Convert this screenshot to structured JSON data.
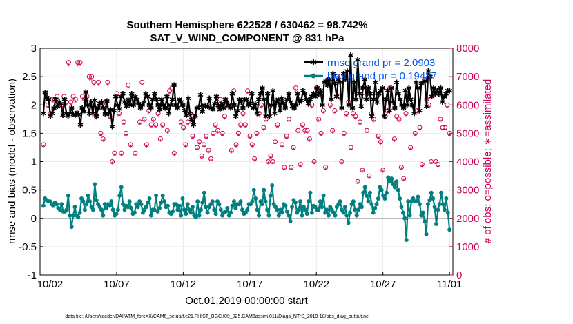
{
  "chart_data": {
    "type": "line",
    "title": "Southern Hemisphere 622528 / 630462 = 98.742%",
    "subtitle": "SAT_V_WIND_COMPONENT @ 831 hPa",
    "xlabel": "Oct.01,2019 00:00:00 start",
    "ylabel_left": "rmse and bias (model - observation)",
    "ylabel_right": "# of obs: o=possible; ∗=assimilated",
    "x_tick_labels": [
      "10/02",
      "10/07",
      "10/12",
      "10/17",
      "10/22",
      "10/27",
      "11/01"
    ],
    "x_tick_days": [
      1,
      6,
      11,
      16,
      21,
      26,
      31
    ],
    "xlim_days": [
      0.25,
      31.25
    ],
    "ylim_left": [
      -1,
      3
    ],
    "y_ticks_left": [
      "-1",
      "-0.5",
      "0",
      "0.5",
      "1",
      "1.5",
      "2",
      "2.5",
      "3"
    ],
    "ylim_right": [
      0,
      8000
    ],
    "y_ticks_right": [
      "0",
      "1000",
      "2000",
      "3000",
      "4000",
      "5000",
      "6000",
      "7000",
      "8000"
    ],
    "grid": true,
    "legend_position": "top-right",
    "legend": [
      {
        "label": "rmse grand pr = 2.0903",
        "color": "#000000"
      },
      {
        "label": "bias grand pr = 0.19487",
        "color": "#008080"
      }
    ],
    "series": [
      {
        "name": "rmse",
        "color": "#000000",
        "marker": "star",
        "values": [
          1.85,
          2.22,
          2.13,
          2.1,
          1.8,
          1.85,
          1.95,
          2.1,
          1.98,
          2.05,
          2.02,
          1.82,
          2.1,
          1.85,
          1.8,
          1.86,
          1.95,
          1.83,
          1.82,
          1.87,
          1.83,
          1.65,
          1.95,
          1.88,
          2.23,
          2.0,
          1.85,
          2.05,
          1.85,
          2.08,
          1.8,
          1.95,
          2.03,
          2.05,
          1.95,
          1.84,
          2.07,
          1.85,
          1.92,
          1.62,
          1.9,
          2.15,
          2.0,
          1.93,
          2.15,
          2.2,
          2.05,
          1.98,
          2.1,
          2.0,
          2.2,
          2.0,
          2.15,
          2.1,
          2.02,
          1.95,
          2.0,
          2.05,
          2.2,
          2.15,
          2.0,
          1.95,
          2.1,
          2.2,
          2.1,
          2.0,
          1.92,
          2.1,
          2.0,
          1.95,
          2.15,
          1.85,
          2.0,
          2.1,
          2.35,
          2.0,
          1.95,
          2.1,
          2.05,
          2.0,
          1.9,
          1.82,
          2.12,
          1.85,
          1.75,
          1.65,
          1.82,
          1.95,
          1.96,
          2.18,
          1.88,
          2.0,
          1.98,
          1.98,
          2.12,
          1.95,
          1.92,
          2.02,
          2.15,
          1.99,
          1.92,
          2.03,
          1.95,
          2.1,
          2.05,
          2.0,
          1.95,
          2.2,
          2.0,
          1.8,
          1.9,
          2.1,
          2.05,
          1.95,
          2.1,
          2.1,
          2.0,
          2.03,
          2.2,
          1.95,
          2.02,
          1.85,
          2.1,
          2.2,
          2.3,
          2.1,
          1.8,
          2.2,
          1.8,
          2.0,
          2.25,
          1.85,
          2.05,
          2.1,
          1.9,
          2.12,
          2.03,
          1.95,
          2.1,
          2.2,
          2.05,
          1.98,
          1.95,
          2.0,
          2.2,
          2.05,
          2.08,
          2.25,
          2.2,
          2.1,
          2.02,
          2.1,
          2.15,
          2.2,
          2.15,
          2.3,
          2.2,
          2.25,
          2.0,
          2.4,
          2.42,
          2.35,
          2.45,
          2.1,
          2.55,
          2.38,
          2.15,
          2.45,
          2.4,
          1.95,
          2.55,
          2.45,
          2.6,
          2.0,
          2.88,
          1.95,
          2.4,
          2.1,
          2.8,
          2.2,
          1.98,
          2.3,
          2.45,
          2.1,
          2.3,
          2.2,
          1.8,
          2.1,
          2.4,
          2.05,
          2.2,
          2.25,
          2.3,
          1.8,
          2.1,
          2.25,
          1.9,
          2.3,
          2.05,
          1.95,
          2.4,
          2.2,
          2.1,
          2.0,
          1.95,
          2.25,
          2.0,
          2.3,
          2.1,
          2.0,
          1.85,
          2.4,
          2.3,
          1.9,
          2.38,
          2.4,
          2.42,
          1.98,
          2.6,
          2.5,
          2.15,
          2.3,
          2.2,
          2.25,
          2.2,
          2.3,
          2.05,
          2.15,
          2.2,
          2.25,
          2.25
        ]
      },
      {
        "name": "bias",
        "color": "#008080",
        "marker": "dot",
        "values": [
          0.22,
          0.35,
          0.32,
          0.3,
          0.3,
          0.25,
          0.22,
          0.28,
          0.25,
          0.18,
          0.15,
          0.25,
          0.12,
          0.12,
          0.15,
          0.4,
          0.05,
          -0.15,
          0.05,
          0.2,
          0.05,
          0.02,
          0.1,
          0.35,
          0.3,
          0.15,
          0.25,
          0.4,
          0.3,
          0.2,
          0.15,
          0.6,
          0.32,
          0.25,
          0.2,
          0.15,
          0.05,
          0.25,
          0.18,
          0.25,
          0.22,
          0.3,
          0.15,
          0.05,
          0.08,
          0.15,
          0.4,
          0.55,
          0.25,
          0.15,
          0.22,
          0.2,
          0.3,
          0.18,
          0.08,
          0.1,
          0.25,
          0.2,
          0.3,
          0.25,
          0.1,
          0.15,
          0.2,
          0.28,
          0.35,
          0.05,
          0.15,
          0.15,
          0.4,
          0.12,
          0.18,
          0.28,
          0.4,
          0.3,
          0.2,
          0.22,
          0.1,
          0.08,
          0.12,
          0.25,
          0.25,
          0.15,
          0.22,
          0.05,
          0.35,
          0.15,
          0.08,
          0.25,
          0.15,
          0.1,
          0.2,
          0.05,
          0.02,
          0.3,
          0.05,
          0.15,
          0.28,
          0.45,
          0.2,
          0.1,
          0.2,
          0.25,
          0.3,
          0.15,
          0.08,
          0.3,
          0.25,
          0.15,
          0.05,
          0.1,
          0.12,
          0.18,
          0.05,
          0.1,
          0.22,
          0.3,
          0.18,
          0.25,
          0.25,
          0.3,
          0.15,
          0.08,
          0.1,
          0.15,
          0.25,
          0.25,
          0.3,
          0.5,
          0.35,
          0.15,
          0.05,
          0.3,
          0.25,
          0.5,
          0.3,
          0.15,
          0.05,
          0.4,
          0.58,
          0.25,
          0.2,
          0.15,
          0.05,
          0.15,
          0.1,
          0.25,
          0.22,
          0.12,
          0.05,
          -0.05,
          0.2,
          0.32,
          0.28,
          0.1,
          0.15,
          0.3,
          0.05,
          0.2,
          0.15,
          0.08,
          0.3,
          0.45,
          0.1,
          0.22,
          0.2,
          0.15,
          0.15,
          0.3,
          0.2,
          0.4,
          0.1,
          0.15,
          0.05,
          0.2,
          0.15,
          0.1,
          0.05,
          0.2,
          0.25,
          0.3,
          0.15,
          0.1,
          0.2,
          0.05,
          -0.08,
          0.1,
          0.25,
          0.3,
          0.15,
          0.05,
          0.15,
          0.25,
          0.2,
          0.45,
          0.55,
          0.4,
          0.3,
          0.45,
          0.25,
          0.1,
          0.18,
          0.25,
          0.35,
          0.55,
          0.5,
          0.4,
          0.35,
          0.45,
          0.72,
          0.65,
          0.7,
          0.6,
          0.55,
          0.65,
          0.5,
          0.35,
          0.2,
          0.1,
          0.0,
          -0.38,
          0.3,
          0.05,
          0.3,
          0.35,
          0.3,
          0.3,
          0.38,
          0.25,
          0.05,
          0.1,
          -0.05,
          -0.28,
          0.25,
          0.32,
          0.45,
          0.35,
          0.2,
          -0.1,
          0.15,
          0.25,
          0.45,
          0.25,
          0.15,
          0.35,
          0.1,
          -0.2
        ]
      },
      {
        "name": "obs possible",
        "color": "#cc0055",
        "marker": "circle",
        "axis": "right",
        "values": [
          4600,
          6400,
          6000,
          5700,
          6200,
          6200,
          6300,
          6000,
          6000,
          6300,
          6100,
          7500,
          6100,
          6300,
          6200,
          7500,
          7500,
          6300,
          6200,
          6300,
          7000,
          7000,
          6800,
          5600,
          6800,
          5000,
          4800,
          6100,
          6800,
          5600,
          4000,
          4300,
          6400,
          5700,
          4300,
          5400,
          5000,
          6700,
          4600,
          6200,
          4300,
          6100,
          5400,
          6800,
          5500,
          4600,
          5800,
          5300,
          5500,
          5300,
          5700,
          4800,
          5300,
          5900,
          5100,
          6500,
          6600,
          4300,
          6000,
          6000,
          5400,
          5200,
          4600,
          5400,
          5700,
          4900,
          5600,
          4500,
          4700,
          4200,
          4600,
          4900,
          4400,
          4100,
          5000,
          5300,
          5100,
          6200,
          5000,
          5600,
          6000,
          6000,
          4400,
          6500,
          4600,
          5000,
          5300,
          5700,
          5300,
          6500,
          4900,
          4600,
          4100,
          5000,
          5700,
          6000,
          5200,
          5500,
          4000,
          4200,
          4000,
          4700,
          5300,
          5900,
          4600,
          3800,
          4900,
          5500,
          3800,
          4500,
          6600,
          5100,
          3900,
          5300,
          5100,
          5100,
          4800,
          6000,
          4000,
          6600,
          5500,
          5000,
          5800,
          3800,
          6900,
          6000,
          5100,
          5800,
          7000,
          6300,
          4000,
          5000,
          5700,
          6100,
          4500,
          5700,
          5600,
          3300,
          5400,
          3700,
          6300,
          5100,
          3500,
          5700,
          5500,
          6300,
          4900,
          4700,
          3700,
          5600,
          5800,
          6600,
          3300,
          4800,
          5600,
          5500,
          3800,
          3400,
          5700,
          6200,
          4500,
          6000,
          5000,
          5800,
          5200,
          3900,
          6900,
          6200,
          6000,
          4000,
          6400,
          4000,
          3900,
          5500,
          5200,
          5200,
          6000,
          5000
        ]
      }
    ]
  },
  "footer": "data file: /Users/raeder/DAI/ATM_forcXX/CAM6_setup/f.e21.FHIST_BGC.f09_025.CAM6assim.011/Diags_NTrS_2019-10/obs_diag_output.nc"
}
